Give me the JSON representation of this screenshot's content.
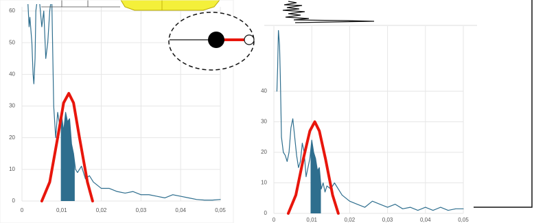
{
  "chart_data": [
    {
      "type": "line",
      "xlim": [
        0,
        0.05
      ],
      "ylim": [
        0,
        60
      ],
      "xticks": [
        0,
        {
          "value": 0.01,
          "label": "0,01"
        },
        {
          "value": 0.02,
          "label": "0,02"
        },
        {
          "value": 0.03,
          "label": "0,03"
        },
        {
          "value": 0.04,
          "label": "0,04"
        },
        {
          "value": 0.05,
          "label": "0,05"
        }
      ],
      "yticks": [
        0,
        10,
        20,
        30,
        40,
        50,
        60
      ],
      "grid": true,
      "series": [
        {
          "color": "#2e6e8e",
          "width": 1.2,
          "x": [
            0.0014,
            0.0018,
            0.002,
            0.0025,
            0.0028,
            0.003,
            0.0033,
            0.0035,
            0.004,
            0.0045,
            0.005,
            0.0055,
            0.006,
            0.0065,
            0.007,
            0.0075,
            0.008,
            0.0085,
            0.009,
            0.0095,
            0.01,
            0.0105,
            0.011,
            0.0115,
            0.012,
            0.0125,
            0.013,
            0.0135,
            0.014,
            0.015,
            0.016,
            0.017,
            0.018,
            0.019,
            0.02,
            0.022,
            0.024,
            0.026,
            0.028,
            0.03,
            0.032,
            0.034,
            0.036,
            0.038,
            0.04,
            0.042,
            0.044,
            0.046,
            0.048,
            0.05
          ],
          "values": [
            65,
            55,
            58,
            50,
            40,
            37,
            45,
            60,
            65,
            62,
            55,
            60,
            45,
            50,
            60,
            65,
            30,
            20,
            28,
            24,
            27,
            22,
            28,
            25,
            26,
            18,
            15,
            10,
            9,
            11,
            7,
            8,
            6,
            5,
            4,
            4,
            3,
            2.5,
            3,
            2,
            2,
            1.5,
            1,
            2,
            1.5,
            1,
            0.5,
            0.3,
            0.3,
            0.5
          ]
        },
        {
          "color": "#e8160c",
          "width": 4,
          "x": [
            0.005,
            0.007,
            0.009,
            0.0105,
            0.0118,
            0.013,
            0.0145,
            0.0165,
            0.0178
          ],
          "values": [
            0,
            6,
            20,
            31,
            34,
            31,
            20,
            6,
            0
          ]
        }
      ],
      "shade": {
        "xlim": [
          0.0098,
          0.0133
        ],
        "color": "#2e6e8e"
      }
    },
    {
      "type": "line",
      "xlim": [
        0,
        0.05
      ],
      "ylim": [
        0,
        60
      ],
      "xticks": [
        0,
        {
          "value": 0.01,
          "label": "0,01"
        },
        {
          "value": 0.02,
          "label": "0,02"
        },
        {
          "value": 0.03,
          "label": "0,03"
        },
        {
          "value": 0.04,
          "label": "0,04"
        },
        {
          "value": 0.05,
          "label": "0,05"
        }
      ],
      "yticks": [
        0,
        10,
        20,
        30,
        40
      ],
      "grid": true,
      "series": [
        {
          "color": "#2e6e8e",
          "width": 1.2,
          "x": [
            0.0008,
            0.001,
            0.0012,
            0.0015,
            0.0017,
            0.002,
            0.0025,
            0.003,
            0.0035,
            0.004,
            0.0045,
            0.005,
            0.0055,
            0.006,
            0.0065,
            0.007,
            0.0075,
            0.008,
            0.0085,
            0.009,
            0.0095,
            0.01,
            0.0105,
            0.011,
            0.0115,
            0.012,
            0.0125,
            0.013,
            0.0135,
            0.014,
            0.015,
            0.016,
            0.017,
            0.018,
            0.02,
            0.022,
            0.024,
            0.026,
            0.028,
            0.03,
            0.032,
            0.034,
            0.036,
            0.038,
            0.04,
            0.042,
            0.044,
            0.046,
            0.048,
            0.05
          ],
          "values": [
            40,
            48,
            60,
            55,
            45,
            25,
            20,
            19,
            17,
            20,
            28,
            31,
            25,
            19,
            15,
            17,
            23,
            20,
            12,
            15,
            18,
            24,
            20,
            18,
            14,
            15,
            8,
            10,
            7,
            9,
            8,
            10,
            8,
            6,
            4,
            3,
            2,
            4,
            3,
            2,
            3,
            1.5,
            2,
            1,
            2,
            1,
            2,
            1,
            1.5,
            1.5
          ]
        },
        {
          "color": "#e8160c",
          "width": 4,
          "x": [
            0.0038,
            0.0058,
            0.0078,
            0.0095,
            0.0108,
            0.012,
            0.0136,
            0.0155,
            0.017
          ],
          "values": [
            0,
            6,
            18,
            27,
            30,
            27,
            18,
            6,
            0
          ]
        }
      ],
      "shade": {
        "xlim": [
          0.0097,
          0.0124
        ],
        "color": "#2e6e8e"
      }
    }
  ]
}
